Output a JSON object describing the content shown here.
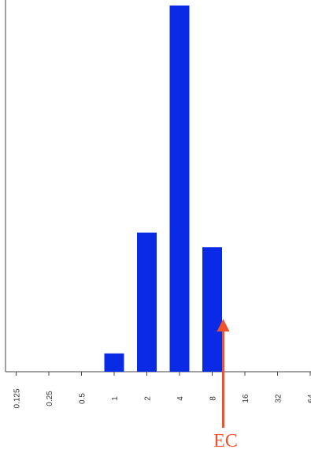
{
  "chart_data": {
    "type": "bar",
    "categories": [
      "0.125",
      "0.25",
      "0.5",
      "1",
      "2",
      "4",
      "8",
      "16",
      "32",
      "64"
    ],
    "series": [
      {
        "values": [
          0,
          0,
          0,
          5,
          38,
          100,
          34,
          0,
          0,
          0
        ]
      }
    ],
    "ylim": [
      0,
      100
    ],
    "bar_color": "#0a2be6",
    "grid": false,
    "legend": false,
    "x_tick_labels_rotated": true,
    "annotations": [
      {
        "label": "EC",
        "category": "8",
        "arrow": "up",
        "color": "#f0532c"
      }
    ]
  }
}
